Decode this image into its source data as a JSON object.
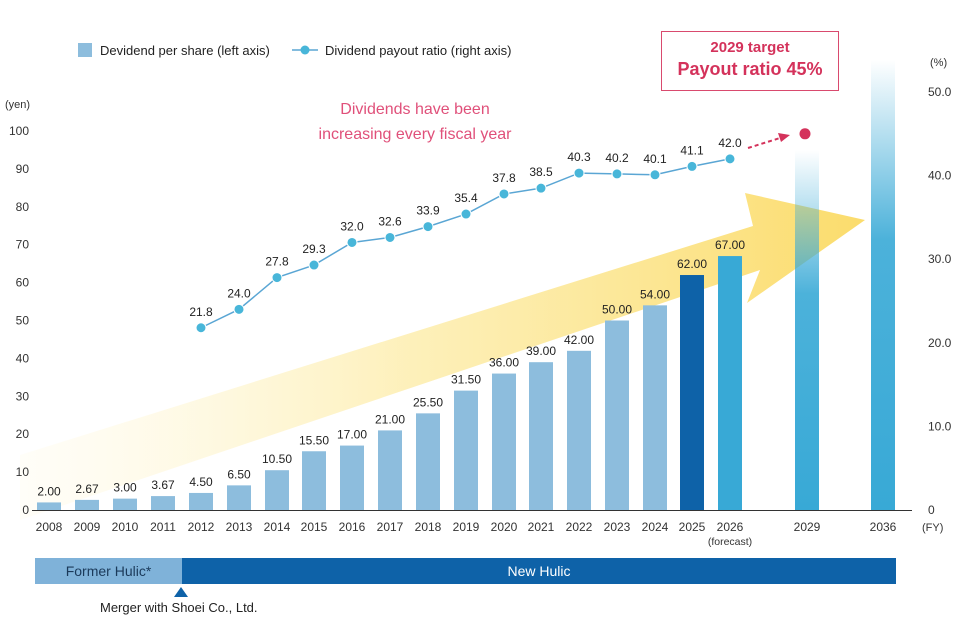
{
  "chart_data": {
    "type": "bar",
    "categories": [
      "2008",
      "2009",
      "2010",
      "2011",
      "2012",
      "2013",
      "2014",
      "2015",
      "2016",
      "2017",
      "2018",
      "2019",
      "2020",
      "2021",
      "2022",
      "2023",
      "2024",
      "2025",
      "2026",
      "2029",
      "2036"
    ],
    "series": [
      {
        "name": "Devidend per share (left axis)",
        "axis": "left",
        "values": [
          2.0,
          2.67,
          3.0,
          3.67,
          4.5,
          6.5,
          10.5,
          15.5,
          17.0,
          21.0,
          25.5,
          31.5,
          36.0,
          39.0,
          42.0,
          50.0,
          54.0,
          62.0,
          67.0,
          null,
          null
        ],
        "labels": [
          "2.00",
          "2.67",
          "3.00",
          "3.67",
          "4.50",
          "6.50",
          "10.50",
          "15.50",
          "17.00",
          "21.00",
          "25.50",
          "31.50",
          "36.00",
          "39.00",
          "42.00",
          "50.00",
          "54.00",
          "62.00",
          "67.00",
          "",
          ""
        ]
      },
      {
        "name": "Dividend payout ratio (right axis)",
        "axis": "right",
        "values": [
          null,
          null,
          null,
          null,
          21.8,
          24.0,
          27.8,
          29.3,
          32.0,
          32.6,
          33.9,
          35.4,
          37.8,
          38.5,
          40.3,
          40.2,
          40.1,
          41.1,
          42.0,
          45.0,
          null
        ],
        "labels": [
          "",
          "",
          "",
          "",
          "21.8",
          "24.0",
          "27.8",
          "29.3",
          "32.0",
          "32.6",
          "33.9",
          "35.4",
          "37.8",
          "38.5",
          "40.3",
          "40.2",
          "40.1",
          "41.1",
          "42.0",
          "",
          ""
        ]
      }
    ],
    "left_axis": {
      "label": "(yen)",
      "ylim": [
        0,
        100
      ],
      "ticks": [
        "0",
        "10",
        "20",
        "30",
        "40",
        "50",
        "60",
        "70",
        "80",
        "90",
        "100"
      ]
    },
    "right_axis": {
      "label": "(%)",
      "ylim": [
        0,
        50
      ],
      "ticks": [
        "0",
        "10.0",
        "20.0",
        "30.0",
        "40.0",
        "50.0"
      ]
    },
    "x_axis_unit": "(FY)",
    "forecast_note": "(forecast)",
    "target_value": 45.0,
    "legend": {
      "bar_label": "Devidend per share (left axis)",
      "line_label": "Dividend payout ratio (right axis)",
      "position": "top-left"
    }
  },
  "target_box": {
    "line1": "2029 target",
    "line2": "Payout ratio 45%"
  },
  "callout": {
    "line1": "Dividends have been",
    "line2": "increasing every fiscal year"
  },
  "eras": {
    "former": "Former Hulic*",
    "new": "New Hulic"
  },
  "merger_note": "Merger with Shoei Co., Ltd.",
  "colors": {
    "bar": "#8dbddd",
    "bar_2025": "#0e62a8",
    "bar_2026": "#38a9d6",
    "line": "#5aa6d4",
    "dot": "#48b6d9",
    "target": "#d4325b",
    "arrow": "#fbe27a"
  }
}
